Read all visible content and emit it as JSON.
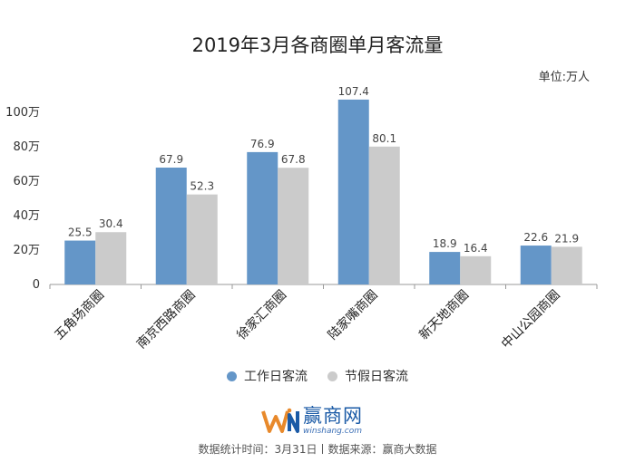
{
  "page": {
    "title": "2019年3月各商圈单月客流量",
    "unit": "单位:万人",
    "footer": "数据统计时间：3月31日丨数据来源：赢商大数据",
    "logo": {
      "cn": "赢商网",
      "en": "winshang.com"
    }
  },
  "colors": {
    "series_work": "#6496c8",
    "series_holiday": "#cbcbcb",
    "axis": "#999999"
  },
  "chart_data": {
    "type": "bar",
    "title": "2019年3月各商圈单月客流量",
    "categories": [
      "五角场商圈",
      "南京西路商圈",
      "徐家汇商圈",
      "陆家嘴商圈",
      "新天地商圈",
      "中山公园商圈"
    ],
    "series": [
      {
        "name": "工作日客流",
        "values": [
          25.5,
          67.9,
          76.9,
          107.4,
          18.9,
          22.6
        ]
      },
      {
        "name": "节假日客流",
        "values": [
          30.4,
          52.3,
          67.8,
          80.1,
          16.4,
          21.9
        ]
      }
    ],
    "y_ticks": [
      "0",
      "20万",
      "40万",
      "60万",
      "80万",
      "100万"
    ],
    "ylim": [
      0,
      110
    ],
    "grid": false,
    "legend_position": "bottom-center"
  }
}
